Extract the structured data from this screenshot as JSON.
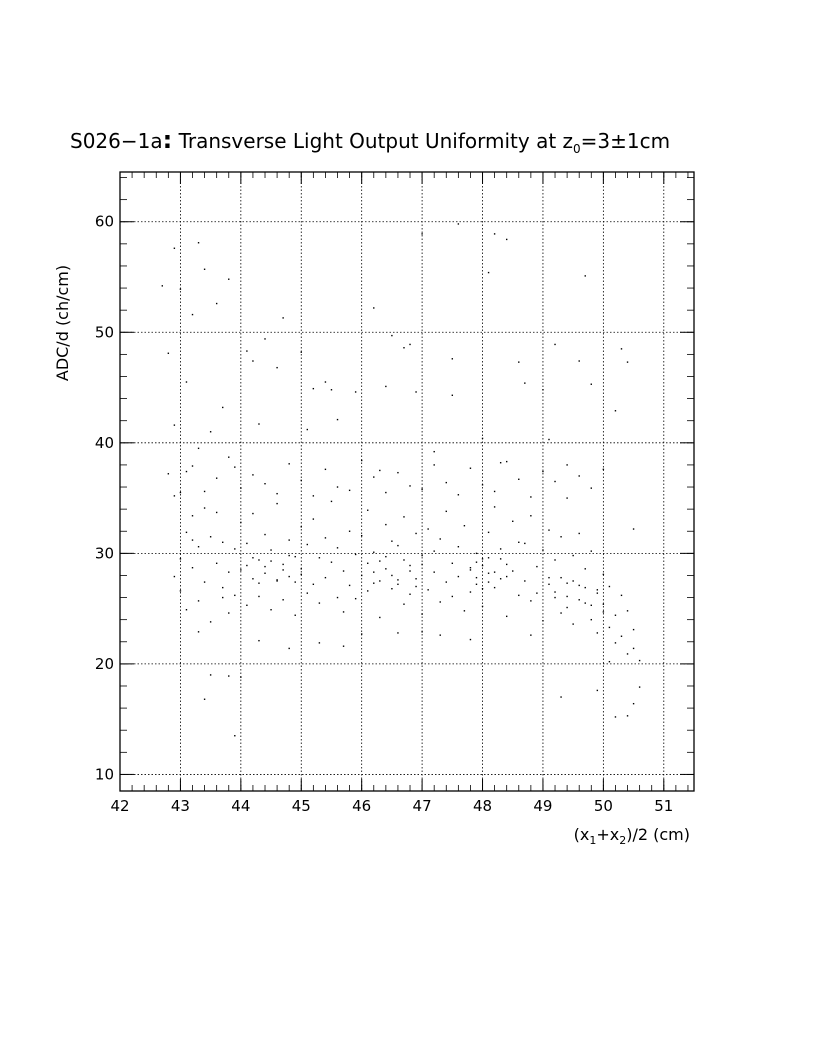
{
  "chart_data": {
    "type": "scatter",
    "title": {
      "main": "S026−1a",
      "colon": ":",
      "rest": " Transverse Light Output Uniformity at z",
      "sub": "0",
      "value": "=3±1cm"
    },
    "xlabel": {
      "p1": "(x",
      "s1": "1",
      "p2": "+x",
      "s2": "2",
      "p3": ")/2 (cm)"
    },
    "ylabel": "ADC/d (ch/cm)",
    "xlim": [
      42,
      51.5
    ],
    "ylim": [
      8.5,
      64.5
    ],
    "x_ticks": [
      42,
      43,
      44,
      45,
      46,
      47,
      48,
      49,
      50,
      51
    ],
    "y_ticks": [
      10,
      20,
      30,
      40,
      50,
      60
    ],
    "x_tick_labels": [
      "42",
      "43",
      "44",
      "45",
      "46",
      "47",
      "48",
      "49",
      "50",
      "51"
    ],
    "y_tick_labels": [
      "10",
      "20",
      "30",
      "40",
      "50",
      "60"
    ],
    "grid": true,
    "legend": "none",
    "points": [
      [
        42.7,
        54.2
      ],
      [
        42.8,
        48.1
      ],
      [
        42.8,
        37.2
      ],
      [
        42.9,
        57.6
      ],
      [
        42.9,
        41.6
      ],
      [
        42.9,
        27.9
      ],
      [
        43.0,
        35.5
      ],
      [
        43.0,
        53.9
      ],
      [
        43.1,
        45.5
      ],
      [
        43.1,
        37.4
      ],
      [
        43.2,
        51.6
      ],
      [
        43.2,
        31.2
      ],
      [
        43.3,
        58.1
      ],
      [
        43.3,
        39.5
      ],
      [
        43.3,
        22.9
      ],
      [
        43.4,
        55.7
      ],
      [
        43.4,
        16.8
      ],
      [
        43.5,
        19.0
      ],
      [
        43.5,
        41.0
      ],
      [
        43.6,
        52.6
      ],
      [
        43.7,
        43.2
      ],
      [
        43.7,
        26.0
      ],
      [
        43.8,
        54.8
      ],
      [
        43.8,
        18.9
      ],
      [
        43.9,
        13.5
      ],
      [
        43.9,
        37.8
      ],
      [
        44.0,
        18.8
      ],
      [
        44.1,
        48.3
      ],
      [
        44.2,
        47.4
      ],
      [
        44.3,
        41.7
      ],
      [
        44.3,
        22.1
      ],
      [
        44.4,
        49.4
      ],
      [
        44.6,
        46.8
      ],
      [
        44.7,
        51.3
      ],
      [
        44.8,
        21.4
      ],
      [
        45.0,
        48.2
      ],
      [
        45.1,
        41.2
      ],
      [
        45.2,
        44.9
      ],
      [
        45.3,
        21.9
      ],
      [
        45.4,
        45.5
      ],
      [
        45.5,
        44.8
      ],
      [
        45.6,
        42.1
      ],
      [
        45.7,
        21.6
      ],
      [
        45.9,
        44.6
      ],
      [
        46.0,
        22.7
      ],
      [
        46.2,
        52.2
      ],
      [
        46.3,
        37.5
      ],
      [
        46.4,
        45.1
      ],
      [
        46.5,
        49.7
      ],
      [
        46.6,
        22.8
      ],
      [
        46.7,
        48.6
      ],
      [
        46.8,
        48.9
      ],
      [
        46.9,
        44.6
      ],
      [
        47.0,
        22.9
      ],
      [
        47.0,
        58.9
      ],
      [
        47.2,
        39.2
      ],
      [
        47.3,
        22.6
      ],
      [
        47.5,
        44.3
      ],
      [
        47.5,
        47.6
      ],
      [
        47.6,
        59.8
      ],
      [
        47.8,
        22.2
      ],
      [
        48.0,
        40.4
      ],
      [
        48.1,
        55.4
      ],
      [
        48.2,
        58.9
      ],
      [
        48.3,
        38.2
      ],
      [
        48.4,
        58.4
      ],
      [
        48.6,
        47.3
      ],
      [
        48.7,
        45.4
      ],
      [
        48.8,
        22.6
      ],
      [
        49.0,
        44.8
      ],
      [
        49.1,
        40.3
      ],
      [
        49.2,
        48.9
      ],
      [
        49.3,
        17.0
      ],
      [
        49.4,
        38.0
      ],
      [
        49.6,
        47.4
      ],
      [
        49.7,
        55.1
      ],
      [
        49.8,
        45.3
      ],
      [
        49.9,
        17.6
      ],
      [
        50.0,
        37.6
      ],
      [
        50.1,
        20.2
      ],
      [
        50.2,
        42.9
      ],
      [
        50.2,
        15.2
      ],
      [
        50.3,
        48.5
      ],
      [
        50.4,
        47.3
      ],
      [
        50.4,
        15.3
      ],
      [
        50.5,
        32.2
      ],
      [
        50.5,
        16.4
      ],
      [
        50.6,
        20.3
      ],
      [
        50.6,
        17.9
      ],
      [
        42.9,
        35.2
      ],
      [
        43.0,
        29.5
      ],
      [
        43.0,
        26.6
      ],
      [
        43.1,
        31.9
      ],
      [
        43.1,
        24.9
      ],
      [
        43.2,
        33.4
      ],
      [
        43.2,
        28.7
      ],
      [
        43.3,
        30.6
      ],
      [
        43.3,
        25.7
      ],
      [
        43.4,
        34.1
      ],
      [
        43.4,
        27.4
      ],
      [
        43.5,
        31.5
      ],
      [
        43.5,
        23.8
      ],
      [
        43.6,
        29.1
      ],
      [
        43.6,
        33.7
      ],
      [
        43.7,
        26.9
      ],
      [
        43.7,
        31.0
      ],
      [
        43.8,
        28.3
      ],
      [
        43.8,
        24.6
      ],
      [
        43.9,
        30.4
      ],
      [
        43.9,
        26.2
      ],
      [
        44.0,
        32.8
      ],
      [
        44.0,
        28.5
      ],
      [
        44.1,
        25.3
      ],
      [
        44.1,
        30.9
      ],
      [
        44.2,
        27.7
      ],
      [
        44.2,
        33.6
      ],
      [
        44.3,
        29.4
      ],
      [
        44.3,
        26.1
      ],
      [
        44.4,
        31.7
      ],
      [
        44.4,
        28.2
      ],
      [
        44.5,
        24.9
      ],
      [
        44.5,
        30.3
      ],
      [
        44.6,
        27.5
      ],
      [
        44.6,
        34.5
      ],
      [
        44.7,
        29.0
      ],
      [
        44.7,
        25.8
      ],
      [
        44.8,
        31.2
      ],
      [
        44.8,
        27.9
      ],
      [
        44.9,
        29.7
      ],
      [
        44.9,
        24.4
      ],
      [
        45.0,
        32.4
      ],
      [
        45.0,
        28.1
      ],
      [
        45.1,
        26.4
      ],
      [
        45.1,
        30.8
      ],
      [
        45.2,
        27.2
      ],
      [
        45.2,
        33.1
      ],
      [
        45.3,
        29.6
      ],
      [
        45.3,
        25.5
      ],
      [
        45.4,
        31.4
      ],
      [
        45.4,
        27.8
      ],
      [
        45.5,
        34.7
      ],
      [
        45.5,
        29.2
      ],
      [
        45.6,
        26.0
      ],
      [
        45.6,
        30.5
      ],
      [
        45.7,
        28.4
      ],
      [
        45.7,
        24.7
      ],
      [
        45.8,
        32.0
      ],
      [
        45.8,
        27.1
      ],
      [
        45.9,
        29.9
      ],
      [
        45.9,
        25.9
      ],
      [
        46.0,
        31.6
      ],
      [
        46.0,
        28.0
      ],
      [
        46.1,
        33.9
      ],
      [
        46.1,
        26.6
      ],
      [
        46.2,
        30.1
      ],
      [
        46.2,
        27.3
      ],
      [
        46.3,
        29.3
      ],
      [
        46.3,
        24.2
      ],
      [
        46.4,
        32.6
      ],
      [
        46.4,
        28.6
      ],
      [
        46.5,
        26.8
      ],
      [
        46.5,
        31.1
      ],
      [
        46.6,
        27.6
      ],
      [
        46.6,
        30.7
      ],
      [
        46.7,
        25.4
      ],
      [
        46.7,
        33.3
      ],
      [
        46.8,
        28.9
      ],
      [
        46.8,
        26.3
      ],
      [
        46.9,
        31.8
      ],
      [
        46.9,
        27.0
      ],
      [
        47.0,
        29.8
      ],
      [
        47.0,
        24.5
      ],
      [
        47.1,
        32.2
      ],
      [
        47.1,
        26.7
      ],
      [
        47.2,
        30.2
      ],
      [
        47.2,
        28.3
      ],
      [
        47.3,
        25.6
      ],
      [
        47.3,
        31.3
      ],
      [
        47.4,
        27.4
      ],
      [
        47.4,
        33.8
      ],
      [
        47.5,
        29.1
      ],
      [
        47.5,
        26.1
      ],
      [
        47.6,
        30.6
      ],
      [
        47.6,
        27.9
      ],
      [
        47.7,
        24.8
      ],
      [
        47.7,
        32.5
      ],
      [
        47.8,
        28.7
      ],
      [
        47.8,
        26.5
      ],
      [
        47.9,
        30.0
      ],
      [
        47.9,
        27.2
      ],
      [
        48.0,
        29.5
      ],
      [
        48.0,
        25.2
      ],
      [
        48.1,
        31.9
      ],
      [
        48.1,
        28.2
      ],
      [
        48.2,
        34.2
      ],
      [
        48.2,
        26.9
      ],
      [
        48.3,
        30.4
      ],
      [
        48.3,
        27.7
      ],
      [
        48.4,
        29.0
      ],
      [
        48.4,
        24.3
      ],
      [
        48.5,
        32.9
      ],
      [
        48.5,
        28.4
      ],
      [
        48.6,
        26.2
      ],
      [
        48.6,
        31.0
      ],
      [
        48.7,
        27.5
      ],
      [
        48.7,
        30.9
      ],
      [
        48.8,
        25.7
      ],
      [
        48.8,
        33.4
      ],
      [
        48.9,
        28.8
      ],
      [
        48.9,
        26.4
      ],
      [
        49.0,
        30.3
      ],
      [
        49.0,
        23.9
      ],
      [
        49.1,
        27.8
      ],
      [
        49.1,
        32.1
      ],
      [
        49.2,
        26.0
      ],
      [
        49.2,
        29.4
      ],
      [
        49.3,
        24.6
      ],
      [
        49.3,
        31.5
      ],
      [
        49.4,
        27.3
      ],
      [
        49.4,
        25.1
      ],
      [
        49.5,
        29.8
      ],
      [
        49.5,
        23.6
      ],
      [
        49.6,
        27.1
      ],
      [
        49.6,
        31.8
      ],
      [
        49.7,
        25.5
      ],
      [
        49.7,
        28.6
      ],
      [
        49.8,
        24.0
      ],
      [
        49.8,
        30.2
      ],
      [
        49.9,
        26.7
      ],
      [
        49.9,
        22.8
      ],
      [
        50.0,
        28.1
      ],
      [
        50.0,
        25.4
      ],
      [
        50.1,
        23.3
      ],
      [
        50.1,
        27.0
      ],
      [
        50.2,
        24.4
      ],
      [
        50.2,
        21.9
      ],
      [
        50.3,
        26.2
      ],
      [
        50.3,
        22.5
      ],
      [
        50.4,
        24.8
      ],
      [
        50.4,
        20.9
      ],
      [
        50.5,
        23.1
      ],
      [
        50.5,
        21.4
      ],
      [
        43.2,
        37.9
      ],
      [
        43.4,
        35.6
      ],
      [
        43.6,
        36.8
      ],
      [
        43.8,
        38.7
      ],
      [
        44.0,
        35.9
      ],
      [
        44.2,
        37.1
      ],
      [
        44.4,
        36.3
      ],
      [
        44.6,
        35.4
      ],
      [
        44.8,
        38.1
      ],
      [
        45.0,
        36.6
      ],
      [
        45.2,
        35.2
      ],
      [
        45.4,
        37.6
      ],
      [
        45.6,
        36.0
      ],
      [
        45.8,
        35.7
      ],
      [
        46.0,
        38.4
      ],
      [
        46.2,
        36.9
      ],
      [
        46.4,
        35.5
      ],
      [
        46.6,
        37.3
      ],
      [
        46.8,
        36.1
      ],
      [
        47.0,
        35.8
      ],
      [
        47.2,
        38.0
      ],
      [
        47.4,
        36.4
      ],
      [
        47.6,
        35.3
      ],
      [
        47.8,
        37.7
      ],
      [
        48.0,
        36.2
      ],
      [
        48.2,
        35.6
      ],
      [
        48.4,
        38.3
      ],
      [
        48.6,
        36.7
      ],
      [
        48.8,
        35.1
      ],
      [
        49.0,
        37.4
      ],
      [
        49.2,
        36.5
      ],
      [
        49.4,
        35.0
      ],
      [
        49.6,
        37.0
      ],
      [
        49.8,
        35.9
      ],
      [
        44.1,
        28.9
      ],
      [
        44.2,
        29.6
      ],
      [
        44.3,
        27.3
      ],
      [
        44.4,
        28.8
      ],
      [
        44.5,
        29.3
      ],
      [
        44.6,
        27.6
      ],
      [
        44.7,
        28.5
      ],
      [
        44.8,
        29.8
      ],
      [
        44.9,
        27.4
      ],
      [
        45.0,
        28.6
      ],
      [
        46.1,
        29.1
      ],
      [
        46.2,
        28.3
      ],
      [
        46.3,
        27.5
      ],
      [
        46.4,
        29.7
      ],
      [
        46.5,
        28.0
      ],
      [
        46.6,
        27.2
      ],
      [
        46.7,
        29.4
      ],
      [
        46.8,
        28.4
      ],
      [
        46.9,
        27.7
      ],
      [
        47.0,
        29.0
      ],
      [
        47.8,
        28.5
      ],
      [
        47.9,
        29.2
      ],
      [
        47.9,
        27.8
      ],
      [
        48.0,
        28.9
      ],
      [
        48.0,
        26.8
      ],
      [
        48.1,
        29.6
      ],
      [
        48.1,
        27.4
      ],
      [
        48.2,
        28.3
      ],
      [
        48.3,
        29.5
      ],
      [
        48.4,
        27.9
      ],
      [
        49.1,
        27.2
      ],
      [
        49.2,
        26.5
      ],
      [
        49.3,
        27.8
      ],
      [
        49.4,
        26.1
      ],
      [
        49.5,
        27.5
      ],
      [
        49.6,
        25.8
      ],
      [
        49.7,
        26.9
      ],
      [
        49.8,
        25.3
      ],
      [
        49.9,
        26.4
      ],
      [
        50.0,
        24.7
      ]
    ]
  }
}
